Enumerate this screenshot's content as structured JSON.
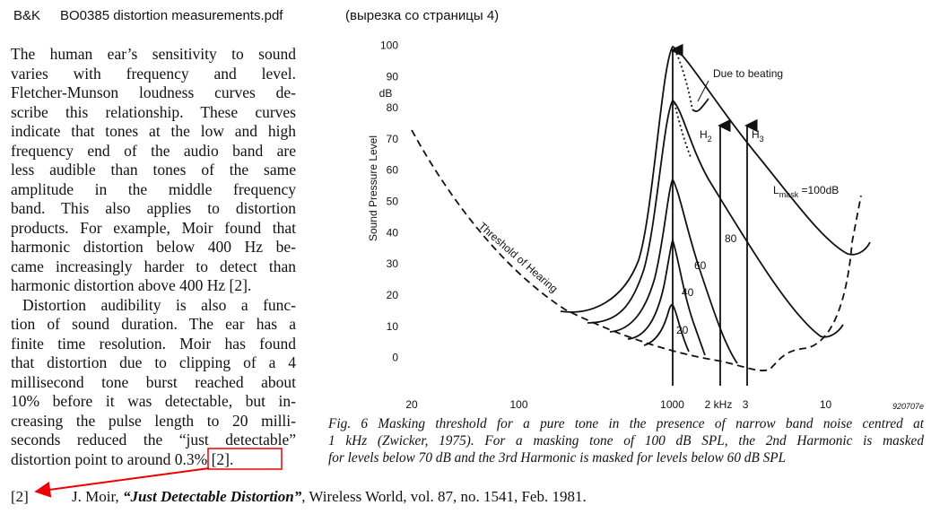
{
  "header": {
    "brand": "B&K",
    "file": "BO0385 distortion measurements.pdf",
    "note": "(вырезка со страницы 4)"
  },
  "body": {
    "paragraphs": [
      [
        "The human ear’s sensitivity to sound",
        "varies with frequency and level.",
        "Fletcher-Munson loudness curves de-",
        "scribe this relationship. These curves",
        "indicate that tones at the low and high",
        "frequency end of the audio band are",
        "less audible than tones of the same",
        "amplitude in the middle frequency",
        "band. This also applies to distortion",
        "products. For example, Moir found that",
        "harmonic distortion below 400 Hz be-",
        "came increasingly harder to detect than",
        "harmonic distortion above 400 Hz [2]."
      ],
      [
        "Distortion audibility is also a func-",
        "tion of sound duration. The ear has a",
        "finite time resolution. Moir has found",
        "that distortion due to clipping of a 4",
        "millisecond tone burst reached about",
        "10% before it was detectable, but in-",
        "creasing the pulse length to 20 milli-",
        "seconds reduced the “just detectable”",
        "distortion point to around"
      ]
    ],
    "highlight": "0.3% [2]."
  },
  "reference": {
    "number": "[2]",
    "author": "J. Moir, ",
    "title": "“Just Detectable Distortion”",
    "rest": ", Wireless World, vol. 87, no. 1541, Feb. 1981."
  },
  "chart_data": {
    "type": "line",
    "y_label": "Sound Pressure Level",
    "y_unit": "dB",
    "ylim": [
      -9,
      103
    ],
    "yticks": [
      0,
      10,
      20,
      30,
      40,
      50,
      60,
      70,
      80,
      90,
      100
    ],
    "xlim": [
      20,
      20000
    ],
    "log_x": true,
    "xticks": [
      20,
      100,
      1000,
      {
        "value": 2000,
        "label": "2 kHz"
      },
      {
        "value": 3000,
        "label": "3"
      },
      {
        "value": 10000,
        "label": "10"
      }
    ],
    "annotations": {
      "beating": "Due to beating",
      "h2": [
        "H",
        "2"
      ],
      "h3": [
        "H",
        "3"
      ],
      "lmask": [
        "L",
        "mask",
        " =100dB"
      ],
      "levels": [
        "80",
        "60",
        "40",
        "20"
      ],
      "threshold": "Threshold of Hearing"
    },
    "code": "920707e",
    "caption": [
      "Fig. 6   Masking threshold for a pure tone in the presence of narrow band noise centred at",
      "1 kHz (Zwicker, 1975). For a masking tone of 100 dB SPL, the 2nd Harmonic is masked",
      "for levels below 70 dB and the 3rd Harmonic is masked for levels below 60 dB SPL"
    ]
  }
}
